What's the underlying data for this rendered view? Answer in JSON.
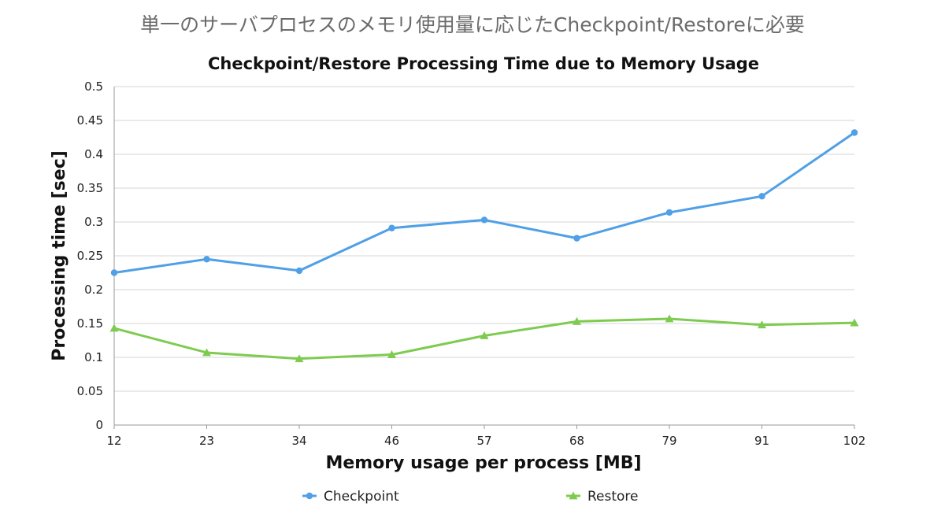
{
  "slide": {
    "title": "単一のサーバプロセスのメモリ使用量に応じたCheckpoint/Restoreに必要"
  },
  "chart_data": {
    "type": "line",
    "title": "Checkpoint/Restore Processing Time due to Memory Usage",
    "xlabel": "Memory usage per process [MB]",
    "ylabel": "Processing time [sec]",
    "categories": [
      "12",
      "23",
      "34",
      "46",
      "57",
      "68",
      "79",
      "91",
      "102"
    ],
    "ylim": [
      0,
      0.5
    ],
    "yticks": [
      "0",
      "0.05",
      "0.1",
      "0.15",
      "0.2",
      "0.25",
      "0.3",
      "0.35",
      "0.4",
      "0.45",
      "0.5"
    ],
    "grid": true,
    "legend_position": "bottom",
    "series": [
      {
        "name": "Checkpoint",
        "marker": "circle",
        "color": "#4fa0e6",
        "values": [
          0.225,
          0.245,
          0.228,
          0.291,
          0.303,
          0.276,
          0.314,
          0.338,
          0.432
        ]
      },
      {
        "name": "Restore",
        "marker": "triangle",
        "color": "#7ecb50",
        "values": [
          0.143,
          0.107,
          0.098,
          0.104,
          0.132,
          0.153,
          0.157,
          0.148,
          0.151
        ]
      }
    ]
  }
}
